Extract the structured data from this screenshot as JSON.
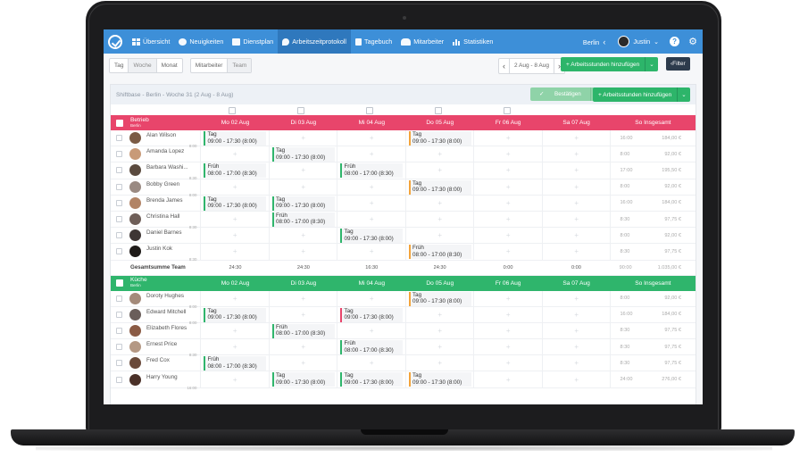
{
  "nav": {
    "items": [
      {
        "label": "Übersicht",
        "icon": "grid-icon"
      },
      {
        "label": "Neuigkeiten",
        "icon": "chat-icon"
      },
      {
        "label": "Dienstplan",
        "icon": "calendar-icon"
      },
      {
        "label": "Arbeitszeitprotokoll",
        "icon": "stopwatch-icon"
      },
      {
        "label": "Tagebuch",
        "icon": "book-icon"
      },
      {
        "label": "Mitarbeiter",
        "icon": "people-icon"
      },
      {
        "label": "Statistiken",
        "icon": "bar-chart-icon"
      }
    ],
    "city": "Berlin",
    "user": "Justin"
  },
  "toolbar": {
    "views": [
      "Tag",
      "Woche",
      "Monat"
    ],
    "groupings": [
      "Mitarbeiter",
      "Team"
    ],
    "date_range": "2 Aug - 8 Aug",
    "add_hours": "Arbeitsstunden hinzufügen",
    "filter": "Filter"
  },
  "card": {
    "title": "Shiftbase - Berlin - Woche 31 (2 Aug - 8 Aug)",
    "confirm": "Bestätigen",
    "add_hours": "Arbeitsstunden hinzufügen"
  },
  "days": [
    "Mo 02 Aug",
    "Di 03 Aug",
    "Mi 04 Aug",
    "Do 05 Aug",
    "Fr 06 Aug",
    "Sa 07 Aug"
  ],
  "sum_header": "So Insgesamt",
  "sections": [
    {
      "name": "Betrieb",
      "sub": "Berlin",
      "color": "#e8456b",
      "employees": [
        {
          "name": "Alan Wilson",
          "hrs": "8:00",
          "shifts": [
            {
              "d": 0,
              "t": "Tag",
              "time": "09:00 - 17:30 (8:00)",
              "c": "green"
            },
            {
              "d": 3,
              "t": "Tag",
              "time": "09:00 - 17:30 (8:00)",
              "c": "orange"
            }
          ],
          "total": "16:00",
          "pay": "184,00 €"
        },
        {
          "name": "Amanda Lopez",
          "hrs": "",
          "shifts": [
            {
              "d": 1,
              "t": "Tag",
              "time": "09:00 - 17:30 (8:00)",
              "c": "green"
            }
          ],
          "total": "8:00",
          "pay": "92,00 €"
        },
        {
          "name": "Barbara Washi...",
          "hrs": "8:30",
          "shifts": [
            {
              "d": 0,
              "t": "Früh",
              "time": "08:00 - 17:00 (8:30)",
              "c": "green"
            },
            {
              "d": 2,
              "t": "Früh",
              "time": "08:00 - 17:00 (8:30)",
              "c": "green"
            }
          ],
          "total": "17:00",
          "pay": "195,50 €"
        },
        {
          "name": "Bobby Green",
          "hrs": "8:00",
          "shifts": [
            {
              "d": 3,
              "t": "Tag",
              "time": "09:00 - 17:30 (8:00)",
              "c": "orange"
            }
          ],
          "total": "8:00",
          "pay": "92,00 €"
        },
        {
          "name": "Brenda James",
          "hrs": "",
          "shifts": [
            {
              "d": 0,
              "t": "Tag",
              "time": "09:00 - 17:30 (8:00)",
              "c": "green"
            },
            {
              "d": 1,
              "t": "Tag",
              "time": "09:00 - 17:30 (8:00)",
              "c": "green"
            }
          ],
          "total": "16:00",
          "pay": "184,00 €"
        },
        {
          "name": "Christina Hall",
          "hrs": "8:30",
          "shifts": [
            {
              "d": 1,
              "t": "Früh",
              "time": "08:00 - 17:00 (8:30)",
              "c": "green"
            }
          ],
          "total": "8:30",
          "pay": "97,75 €"
        },
        {
          "name": "Daniel Barnes",
          "hrs": "",
          "shifts": [
            {
              "d": 2,
              "t": "Tag",
              "time": "09:00 - 17:30 (8:00)",
              "c": "green"
            }
          ],
          "total": "8:00",
          "pay": "92,00 €"
        },
        {
          "name": "Justin Kok",
          "hrs": "8:30",
          "shifts": [
            {
              "d": 3,
              "t": "Früh",
              "time": "08:00 - 17:00 (8:30)",
              "c": "orange"
            }
          ],
          "total": "8:30",
          "pay": "97,75 €"
        }
      ],
      "totals_label": "Gesamtsumme Team",
      "totals": [
        "24:30",
        "24:30",
        "16:30",
        "24:30",
        "0:00",
        "0:00"
      ],
      "grand_total": "90:00",
      "grand_pay": "1.035,00 €"
    },
    {
      "name": "Küche",
      "sub": "Berlin",
      "color": "#2fb56c",
      "employees": [
        {
          "name": "Doroty Hughes",
          "hrs": "8:00",
          "shifts": [
            {
              "d": 3,
              "t": "Tag",
              "time": "09:00 - 17:30 (8:00)",
              "c": "orange"
            }
          ],
          "total": "8:00",
          "pay": "92,00 €"
        },
        {
          "name": "Edward Mitchell",
          "hrs": "8:00",
          "shifts": [
            {
              "d": 0,
              "t": "Tag",
              "time": "09:00 - 17:30 (8:00)",
              "c": "green"
            },
            {
              "d": 2,
              "t": "Tag",
              "time": "09:00 - 17:30 (8:00)",
              "c": "red"
            }
          ],
          "total": "16:00",
          "pay": "184,00 €"
        },
        {
          "name": "Elizabeth Flores",
          "hrs": "",
          "shifts": [
            {
              "d": 1,
              "t": "Früh",
              "time": "08:00 - 17:00 (8:30)",
              "c": "green"
            }
          ],
          "total": "8:30",
          "pay": "97,75 €"
        },
        {
          "name": "Ernest Price",
          "hrs": "8:30",
          "shifts": [
            {
              "d": 2,
              "t": "Früh",
              "time": "08:00 - 17:00 (8:30)",
              "c": "green"
            }
          ],
          "total": "8:30",
          "pay": "97,75 €"
        },
        {
          "name": "Fred Cox",
          "hrs": "",
          "shifts": [
            {
              "d": 0,
              "t": "Früh",
              "time": "08:00 - 17:00 (8:30)",
              "c": "green"
            }
          ],
          "total": "8:30",
          "pay": "97,75 €"
        },
        {
          "name": "Harry Young",
          "hrs": "16:00",
          "shifts": [
            {
              "d": 1,
              "t": "Tag",
              "time": "09:00 - 17:30 (8:00)",
              "c": "green"
            },
            {
              "d": 2,
              "t": "Tag",
              "time": "09:00 - 17:30 (8:00)",
              "c": "green"
            },
            {
              "d": 3,
              "t": "Tag",
              "time": "09:00 - 17:30 (8:00)",
              "c": "orange"
            }
          ],
          "total": "24:00",
          "pay": "276,00 €"
        }
      ]
    }
  ],
  "avatar_colors": [
    "#7a5a44",
    "#c89a78",
    "#5a4a3e",
    "#9a8a82",
    "#b28466",
    "#6e5e58",
    "#3e3634",
    "#1e1a18",
    "#a48a7a",
    "#6a5e5a",
    "#8a5a44",
    "#b49884",
    "#6a4a3a",
    "#4a3028"
  ]
}
